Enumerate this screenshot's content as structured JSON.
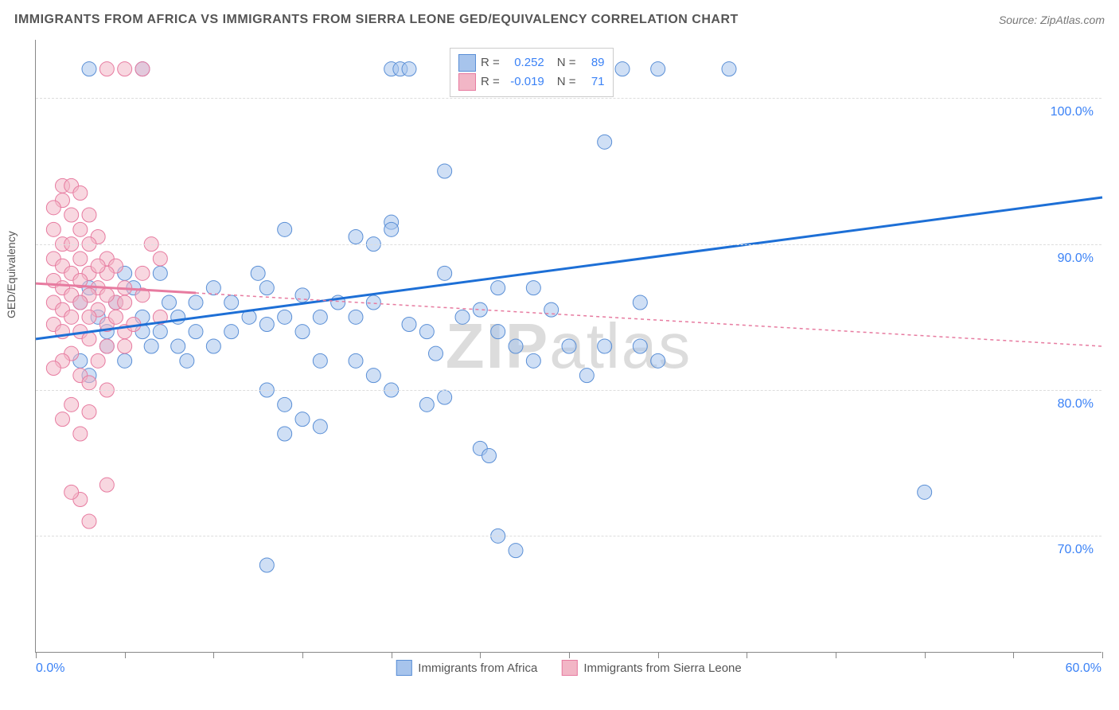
{
  "title": "IMMIGRANTS FROM AFRICA VS IMMIGRANTS FROM SIERRA LEONE GED/EQUIVALENCY CORRELATION CHART",
  "source": "Source: ZipAtlas.com",
  "watermark": "ZIPatlas",
  "chart": {
    "type": "scatter",
    "ylabel": "GED/Equivalency",
    "xlim": [
      0,
      60
    ],
    "ylim": [
      62,
      104
    ],
    "xlim_labels": [
      "0.0%",
      "60.0%"
    ],
    "ytick_values": [
      70,
      80,
      90,
      100
    ],
    "ytick_labels": [
      "70.0%",
      "80.0%",
      "90.0%",
      "100.0%"
    ],
    "xtick_values": [
      0,
      5,
      10,
      15,
      20,
      25,
      30,
      35,
      40,
      45,
      50,
      55,
      60
    ],
    "background_color": "#ffffff",
    "grid_color": "#dddddd",
    "axis_color": "#888888",
    "marker_radius": 9,
    "marker_opacity": 0.55,
    "series": [
      {
        "name": "Immigrants from Africa",
        "color_fill": "#a7c4ec",
        "color_stroke": "#5a8fd6",
        "R": "0.252",
        "N": "89",
        "trend": {
          "x1": 0,
          "y1": 83.5,
          "x2": 60,
          "y2": 93.2,
          "stroke": "#1d6fd6",
          "width": 3,
          "dash": "none"
        },
        "points": [
          [
            3,
            102
          ],
          [
            6,
            102
          ],
          [
            20,
            102
          ],
          [
            20.5,
            102
          ],
          [
            21,
            102
          ],
          [
            25,
            102
          ],
          [
            30,
            102
          ],
          [
            33,
            102
          ],
          [
            35,
            102
          ],
          [
            39,
            102
          ],
          [
            32,
            97
          ],
          [
            23,
            95
          ],
          [
            20,
            91.5
          ],
          [
            20,
            91
          ],
          [
            19,
            90
          ],
          [
            18,
            90.5
          ],
          [
            14,
            91
          ],
          [
            23,
            88
          ],
          [
            26,
            87
          ],
          [
            28,
            87
          ],
          [
            34,
            86
          ],
          [
            29,
            85.5
          ],
          [
            25,
            85.5
          ],
          [
            24,
            85
          ],
          [
            22,
            84
          ],
          [
            21,
            84.5
          ],
          [
            19,
            86
          ],
          [
            18,
            85
          ],
          [
            17,
            86
          ],
          [
            16,
            85
          ],
          [
            15,
            86.5
          ],
          [
            15,
            84
          ],
          [
            14,
            85
          ],
          [
            13,
            84.5
          ],
          [
            13,
            87
          ],
          [
            12.5,
            88
          ],
          [
            12,
            85
          ],
          [
            11,
            84
          ],
          [
            11,
            86
          ],
          [
            10,
            87
          ],
          [
            10,
            83
          ],
          [
            9,
            86
          ],
          [
            9,
            84
          ],
          [
            8.5,
            82
          ],
          [
            8,
            83
          ],
          [
            8,
            85
          ],
          [
            7.5,
            86
          ],
          [
            7,
            84
          ],
          [
            7,
            88
          ],
          [
            6.5,
            83
          ],
          [
            6,
            84
          ],
          [
            6,
            85
          ],
          [
            5.5,
            87
          ],
          [
            5,
            82
          ],
          [
            5,
            88
          ],
          [
            4.5,
            86
          ],
          [
            4,
            84
          ],
          [
            4,
            83
          ],
          [
            3.5,
            85
          ],
          [
            3,
            81
          ],
          [
            3,
            87
          ],
          [
            2.5,
            86
          ],
          [
            2.5,
            82
          ],
          [
            13,
            80
          ],
          [
            14,
            79
          ],
          [
            15,
            78
          ],
          [
            16,
            77.5
          ],
          [
            14,
            77
          ],
          [
            16,
            82
          ],
          [
            18,
            82
          ],
          [
            19,
            81
          ],
          [
            20,
            80
          ],
          [
            13,
            68
          ],
          [
            25,
            76
          ],
          [
            25.5,
            75.5
          ],
          [
            26,
            70
          ],
          [
            27,
            69
          ],
          [
            22,
            79
          ],
          [
            23,
            79.5
          ],
          [
            22.5,
            82.5
          ],
          [
            50,
            73
          ],
          [
            35,
            82
          ],
          [
            34,
            83
          ],
          [
            32,
            83
          ],
          [
            30,
            83
          ],
          [
            28,
            82
          ],
          [
            27,
            83
          ],
          [
            26,
            84
          ],
          [
            31,
            81
          ]
        ]
      },
      {
        "name": "Immigrants from Sierra Leone",
        "color_fill": "#f2b6c6",
        "color_stroke": "#e77ba0",
        "R": "-0.019",
        "N": "71",
        "trend": {
          "x1": 0,
          "y1": 87.3,
          "x2": 60,
          "y2": 83.0,
          "stroke": "#e77ba0",
          "width": 1.5,
          "dash": "4,4"
        },
        "trend_solid_until_x": 9,
        "points": [
          [
            4,
            102
          ],
          [
            5,
            102
          ],
          [
            6,
            102
          ],
          [
            1.5,
            94
          ],
          [
            2,
            94
          ],
          [
            2.5,
            93.5
          ],
          [
            1.5,
            93
          ],
          [
            1,
            92.5
          ],
          [
            2,
            92
          ],
          [
            3,
            92
          ],
          [
            1,
            91
          ],
          [
            2.5,
            91
          ],
          [
            3.5,
            90.5
          ],
          [
            1.5,
            90
          ],
          [
            2,
            90
          ],
          [
            3,
            90
          ],
          [
            4,
            89
          ],
          [
            2.5,
            89
          ],
          [
            1,
            89
          ],
          [
            4.5,
            88.5
          ],
          [
            1.5,
            88.5
          ],
          [
            2,
            88
          ],
          [
            3,
            88
          ],
          [
            4,
            88
          ],
          [
            5,
            87
          ],
          [
            1,
            87.5
          ],
          [
            2.5,
            87.5
          ],
          [
            3.5,
            87
          ],
          [
            1.5,
            87
          ],
          [
            2,
            86.5
          ],
          [
            3,
            86.5
          ],
          [
            4.5,
            86
          ],
          [
            1,
            86
          ],
          [
            2.5,
            86
          ],
          [
            1.5,
            85.5
          ],
          [
            3.5,
            85.5
          ],
          [
            2,
            85
          ],
          [
            3,
            85
          ],
          [
            4,
            84.5
          ],
          [
            1,
            84.5
          ],
          [
            2.5,
            84
          ],
          [
            1.5,
            84
          ],
          [
            3,
            83.5
          ],
          [
            5,
            84
          ],
          [
            6,
            86.5
          ],
          [
            7,
            85
          ],
          [
            4,
            83
          ],
          [
            2,
            82.5
          ],
          [
            3.5,
            82
          ],
          [
            1.5,
            82
          ],
          [
            1,
            81.5
          ],
          [
            2.5,
            81
          ],
          [
            3,
            80.5
          ],
          [
            4,
            80
          ],
          [
            2,
            79
          ],
          [
            3,
            78.5
          ],
          [
            1.5,
            78
          ],
          [
            2.5,
            77
          ],
          [
            3,
            71
          ],
          [
            2.5,
            72.5
          ],
          [
            2,
            73
          ],
          [
            4,
            73.5
          ],
          [
            5,
            83
          ],
          [
            5.5,
            84.5
          ],
          [
            6,
            88
          ],
          [
            7,
            89
          ],
          [
            6.5,
            90
          ],
          [
            5,
            86
          ],
          [
            4.5,
            85
          ],
          [
            3.5,
            88.5
          ],
          [
            4,
            86.5
          ]
        ]
      }
    ],
    "legend_bottom": [
      {
        "label": "Immigrants from Africa",
        "fill": "#a7c4ec",
        "stroke": "#5a8fd6"
      },
      {
        "label": "Immigrants from Sierra Leone",
        "fill": "#f2b6c6",
        "stroke": "#e77ba0"
      }
    ]
  }
}
